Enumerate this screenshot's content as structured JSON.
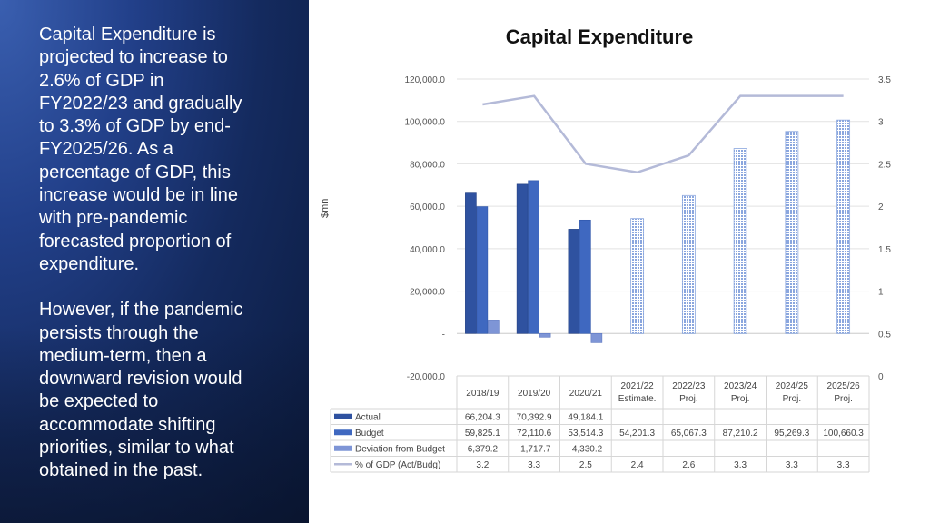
{
  "left_text": {
    "para1": "Capital Expenditure is\nprojected to increase to\n2.6%  of GDP in\nFY2022/23 and gradually\nto 3.3% of GDP by end-\nFY2025/26. As a\npercentage of GDP, this\nincrease  would be in line\nwith pre-pandemic\nforecasted proportion of\nexpenditure.",
    "para2": "However, if the pandemic\npersists through the\nmedium-term, then a\ndownward revision would\nbe expected to\naccommodate shifting\npriorities, similar to what\nobtained in the past."
  },
  "colors": {
    "actual": "#2f52a0",
    "budget": "#3f68c0",
    "deviation": "#7e95d6",
    "gdp_line": "#b4bad8",
    "projection": "#8aa6de"
  },
  "chart_data": {
    "type": "bar",
    "title": "Capital Expenditure",
    "ylabel": "$mn",
    "ylim": [
      -20000,
      120000
    ],
    "y2lim": [
      0,
      3.5
    ],
    "y_ticks": [
      "120,000.0",
      "100,000.0",
      "80,000.0",
      "60,000.0",
      "40,000.0",
      "20,000.0",
      "-",
      "-20,000.0"
    ],
    "y2_ticks": [
      "3.5",
      "3",
      "2.5",
      "2",
      "1.5",
      "1",
      "0.5",
      "0"
    ],
    "categories": [
      "2018/19",
      "2019/20",
      "2020/21",
      "2021/22 Estimate.",
      "2022/23 Proj.",
      "2023/24 Proj.",
      "2024/25 Proj.",
      "2025/26 Proj."
    ],
    "category_lines": [
      [
        "2018/19"
      ],
      [
        "2019/20"
      ],
      [
        "2020/21"
      ],
      [
        "2021/22",
        "Estimate."
      ],
      [
        "2022/23",
        "Proj."
      ],
      [
        "2023/24",
        "Proj."
      ],
      [
        "2024/25",
        "Proj."
      ],
      [
        "2025/26",
        "Proj."
      ]
    ],
    "series": [
      {
        "name": "Actual",
        "values": [
          66204.3,
          70392.9,
          49184.1,
          null,
          null,
          null,
          null,
          null
        ],
        "labels": [
          "66,204.3",
          "70,392.9",
          "49,184.1",
          "",
          "",
          "",
          "",
          ""
        ]
      },
      {
        "name": "Budget",
        "values": [
          59825.1,
          72110.6,
          53514.3,
          54201.3,
          65067.3,
          87210.2,
          95269.3,
          100660.3
        ],
        "labels": [
          "59,825.1",
          "72,110.6",
          "53,514.3",
          "54,201.3",
          "65,067.3",
          "87,210.2",
          "95,269.3",
          "100,660.3"
        ]
      },
      {
        "name": "Deviation from Budget",
        "values": [
          6379.2,
          -1717.7,
          -4330.2,
          null,
          null,
          null,
          null,
          null
        ],
        "labels": [
          "6,379.2",
          "-1,717.7",
          "-4,330.2",
          "",
          "",
          "",
          "",
          ""
        ]
      },
      {
        "name": "% of GDP (Act/Budg)",
        "axis": "secondary",
        "values": [
          3.2,
          3.3,
          2.5,
          2.4,
          2.6,
          3.3,
          3.3,
          3.3
        ],
        "labels": [
          "3.2",
          "3.3",
          "2.5",
          "2.4",
          "2.6",
          "3.3",
          "3.3",
          "3.3"
        ]
      }
    ]
  }
}
